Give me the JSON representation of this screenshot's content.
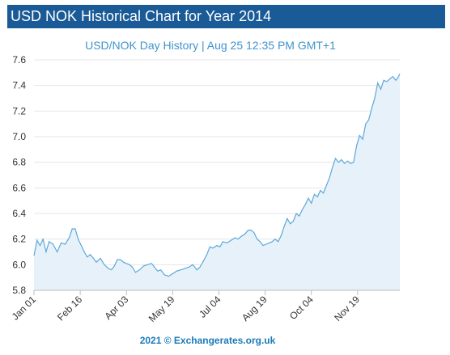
{
  "header": {
    "title": "USD NOK Historical Chart for Year 2014"
  },
  "footer": {
    "credit": "2021 © Exchangerates.org.uk"
  },
  "colors": {
    "banner": "#1a5a96",
    "line": "#5da8d8",
    "fill": "#e6f1fa",
    "subtitle": "#3f94cc",
    "credit": "#1a7ab8"
  },
  "chart_data": {
    "type": "area",
    "title": "",
    "subtitle": "USD/NOK  Day History | Aug 25 12:35 PM GMT+1",
    "xlabel": "",
    "ylabel": "",
    "ylim": [
      5.8,
      7.6
    ],
    "yticks": [
      "5.8",
      "6.0",
      "6.2",
      "6.4",
      "6.6",
      "6.8",
      "7.0",
      "7.2",
      "7.4",
      "7.6"
    ],
    "xticks": [
      {
        "label": "Jan 01",
        "day": 0
      },
      {
        "label": "Feb 16",
        "day": 46
      },
      {
        "label": "Apr 03",
        "day": 92
      },
      {
        "label": "May 19",
        "day": 138
      },
      {
        "label": "Jul 04",
        "day": 184
      },
      {
        "label": "Aug 19",
        "day": 230
      },
      {
        "label": "Oct 04",
        "day": 276
      },
      {
        "label": "Nov 19",
        "day": 322
      }
    ],
    "grid": "horizontal",
    "legend": "none",
    "series": [
      {
        "points": [
          [
            0,
            6.07
          ],
          [
            3,
            6.19
          ],
          [
            6,
            6.15
          ],
          [
            9,
            6.2
          ],
          [
            12,
            6.1
          ],
          [
            15,
            6.18
          ],
          [
            19,
            6.16
          ],
          [
            23,
            6.1
          ],
          [
            27,
            6.17
          ],
          [
            31,
            6.16
          ],
          [
            35,
            6.21
          ],
          [
            38,
            6.28
          ],
          [
            41,
            6.28
          ],
          [
            44,
            6.2
          ],
          [
            47,
            6.15
          ],
          [
            50,
            6.1
          ],
          [
            53,
            6.06
          ],
          [
            56,
            6.08
          ],
          [
            59,
            6.05
          ],
          [
            62,
            6.02
          ],
          [
            66,
            6.05
          ],
          [
            70,
            6.0
          ],
          [
            74,
            5.97
          ],
          [
            77,
            5.96
          ],
          [
            80,
            5.99
          ],
          [
            83,
            6.04
          ],
          [
            86,
            6.04
          ],
          [
            89,
            6.02
          ],
          [
            92,
            6.01
          ],
          [
            95,
            6.0
          ],
          [
            98,
            5.98
          ],
          [
            101,
            5.94
          ],
          [
            105,
            5.96
          ],
          [
            109,
            5.99
          ],
          [
            113,
            6.0
          ],
          [
            117,
            6.01
          ],
          [
            120,
            5.98
          ],
          [
            123,
            5.95
          ],
          [
            126,
            5.96
          ],
          [
            130,
            5.92
          ],
          [
            134,
            5.91
          ],
          [
            138,
            5.93
          ],
          [
            142,
            5.95
          ],
          [
            146,
            5.96
          ],
          [
            150,
            5.97
          ],
          [
            154,
            5.98
          ],
          [
            158,
            6.0
          ],
          [
            162,
            5.96
          ],
          [
            165,
            5.98
          ],
          [
            168,
            6.02
          ],
          [
            172,
            6.08
          ],
          [
            175,
            6.14
          ],
          [
            178,
            6.13
          ],
          [
            182,
            6.15
          ],
          [
            185,
            6.14
          ],
          [
            188,
            6.18
          ],
          [
            192,
            6.17
          ],
          [
            196,
            6.19
          ],
          [
            200,
            6.21
          ],
          [
            203,
            6.2
          ],
          [
            206,
            6.22
          ],
          [
            210,
            6.24
          ],
          [
            213,
            6.27
          ],
          [
            216,
            6.27
          ],
          [
            219,
            6.25
          ],
          [
            222,
            6.2
          ],
          [
            225,
            6.18
          ],
          [
            228,
            6.15
          ],
          [
            231,
            6.16
          ],
          [
            234,
            6.17
          ],
          [
            237,
            6.18
          ],
          [
            240,
            6.2
          ],
          [
            243,
            6.18
          ],
          [
            246,
            6.23
          ],
          [
            249,
            6.3
          ],
          [
            252,
            6.36
          ],
          [
            255,
            6.32
          ],
          [
            258,
            6.34
          ],
          [
            261,
            6.4
          ],
          [
            264,
            6.38
          ],
          [
            267,
            6.43
          ],
          [
            270,
            6.47
          ],
          [
            273,
            6.52
          ],
          [
            276,
            6.48
          ],
          [
            279,
            6.55
          ],
          [
            282,
            6.53
          ],
          [
            285,
            6.58
          ],
          [
            288,
            6.56
          ],
          [
            291,
            6.62
          ],
          [
            294,
            6.68
          ],
          [
            297,
            6.76
          ],
          [
            300,
            6.83
          ],
          [
            303,
            6.8
          ],
          [
            306,
            6.82
          ],
          [
            309,
            6.79
          ],
          [
            312,
            6.81
          ],
          [
            315,
            6.79
          ],
          [
            318,
            6.8
          ],
          [
            321,
            6.93
          ],
          [
            324,
            7.01
          ],
          [
            327,
            6.98
          ],
          [
            330,
            7.1
          ],
          [
            333,
            7.13
          ],
          [
            336,
            7.22
          ],
          [
            339,
            7.3
          ],
          [
            342,
            7.42
          ],
          [
            345,
            7.37
          ],
          [
            348,
            7.44
          ],
          [
            351,
            7.43
          ],
          [
            354,
            7.45
          ],
          [
            357,
            7.47
          ],
          [
            360,
            7.44
          ],
          [
            362,
            7.46
          ],
          [
            364,
            7.49
          ]
        ]
      }
    ]
  }
}
